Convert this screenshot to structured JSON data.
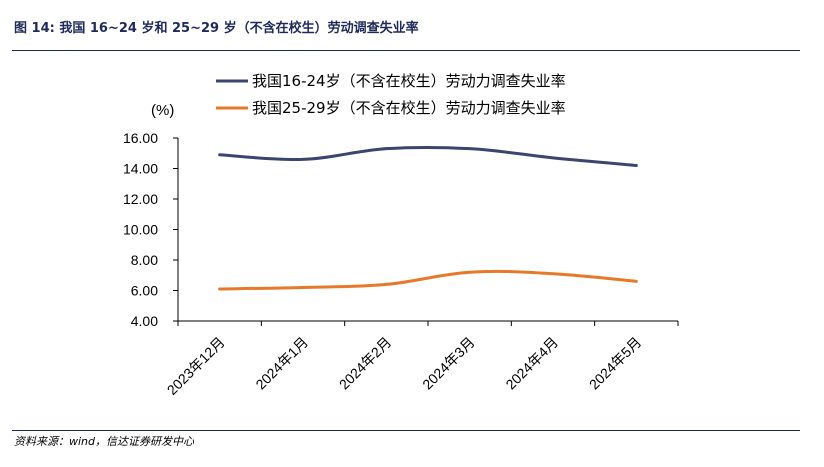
{
  "figure": {
    "title": "图 14: 我国 16~24 岁和 25~29 岁（不含在校生）劳动调查失业率",
    "source": "资料来源：wind，信达证券研发中心"
  },
  "chart_data": {
    "type": "line",
    "title": "",
    "unit_label": "(%)",
    "categories": [
      "2023年12月",
      "2024年1月",
      "2024年2月",
      "2024年3月",
      "2024年4月",
      "2024年5月"
    ],
    "series": [
      {
        "name": "我国16-24岁（不含在校生）劳动力调查失业率",
        "color": "#3b4570",
        "values": [
          14.9,
          14.6,
          15.3,
          15.3,
          14.7,
          14.2
        ]
      },
      {
        "name": "我国25-29岁（不含在校生）劳动力调查失业率",
        "color": "#e8782a",
        "values": [
          6.1,
          6.2,
          6.4,
          7.2,
          7.1,
          6.6
        ]
      }
    ],
    "ylim": [
      4.0,
      16.0
    ],
    "yticks": [
      "4.00",
      "6.00",
      "8.00",
      "10.00",
      "12.00",
      "14.00",
      "16.00"
    ],
    "legend_position": "top",
    "grid": false
  }
}
